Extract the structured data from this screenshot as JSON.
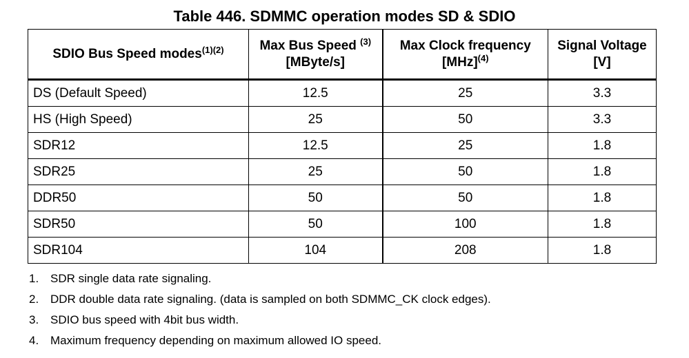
{
  "caption": "Table 446. SDMMC operation modes SD & SDIO",
  "table": {
    "headers": [
      {
        "line1": "SDIO Bus Speed modes",
        "sup": "(1)(2)",
        "line2": ""
      },
      {
        "line1": "Max Bus Speed ",
        "sup": "(3)",
        "line2": "[MByte/s]"
      },
      {
        "line1": "Max Clock frequency",
        "sup": "",
        "line2": "[MHz]",
        "line2_sup": "(4)"
      },
      {
        "line1": "Signal Voltage",
        "sup": "",
        "line2": "[V]"
      }
    ],
    "rows": [
      {
        "mode": "DS (Default Speed)",
        "bus_speed": "12.5",
        "clock": "25",
        "voltage": "3.3"
      },
      {
        "mode": "HS (High Speed)",
        "bus_speed": "25",
        "clock": "50",
        "voltage": "3.3"
      },
      {
        "mode": "SDR12",
        "bus_speed": "12.5",
        "clock": "25",
        "voltage": "1.8"
      },
      {
        "mode": "SDR25",
        "bus_speed": "25",
        "clock": "50",
        "voltage": "1.8"
      },
      {
        "mode": "DDR50",
        "bus_speed": "50",
        "clock": "50",
        "voltage": "1.8"
      },
      {
        "mode": "SDR50",
        "bus_speed": "50",
        "clock": "100",
        "voltage": "1.8"
      },
      {
        "mode": "SDR104",
        "bus_speed": "104",
        "clock": "208",
        "voltage": "1.8"
      }
    ]
  },
  "notes": [
    {
      "num": "1.",
      "text": "SDR single data rate signaling."
    },
    {
      "num": "2.",
      "text": "DDR double data rate signaling. (data is sampled on both SDMMC_CK clock edges)."
    },
    {
      "num": "3.",
      "text": "SDIO bus speed with 4bit bus width."
    },
    {
      "num": "4.",
      "text": "Maximum frequency depending on maximum allowed IO speed."
    }
  ]
}
